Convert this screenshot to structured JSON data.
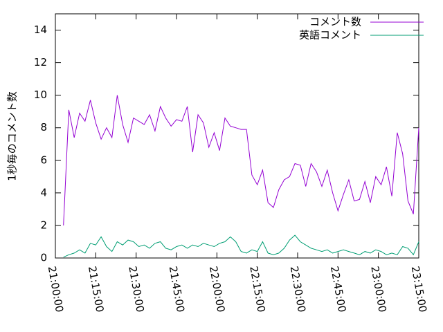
{
  "chart_data": {
    "type": "line",
    "ylabel": "1秒毎のコメント数",
    "x": [
      "21:03:00",
      "21:05:00",
      "21:07:00",
      "21:09:00",
      "21:11:00",
      "21:13:00",
      "21:15:00",
      "21:17:00",
      "21:19:00",
      "21:21:00",
      "21:23:00",
      "21:25:00",
      "21:27:00",
      "21:29:00",
      "21:31:00",
      "21:33:00",
      "21:35:00",
      "21:37:00",
      "21:39:00",
      "21:41:00",
      "21:43:00",
      "21:45:00",
      "21:47:00",
      "21:49:00",
      "21:51:00",
      "21:53:00",
      "21:55:00",
      "21:57:00",
      "21:59:00",
      "22:01:00",
      "22:03:00",
      "22:05:00",
      "22:07:00",
      "22:09:00",
      "22:11:00",
      "22:13:00",
      "22:15:00",
      "22:17:00",
      "22:19:00",
      "22:21:00",
      "22:23:00",
      "22:25:00",
      "22:27:00",
      "22:29:00",
      "22:31:00",
      "22:33:00",
      "22:35:00",
      "22:37:00",
      "22:39:00",
      "22:41:00",
      "22:43:00",
      "22:45:00",
      "22:47:00",
      "22:49:00",
      "22:51:00",
      "22:53:00",
      "22:55:00",
      "22:57:00",
      "22:59:00",
      "23:01:00",
      "23:03:00",
      "23:05:00",
      "23:07:00",
      "23:09:00",
      "23:11:00",
      "23:13:00",
      "23:15:00"
    ],
    "series": [
      {
        "name": "コメント数",
        "color": "#9400d3",
        "values": [
          2.0,
          9.1,
          7.4,
          8.9,
          8.4,
          9.7,
          8.3,
          7.3,
          8.0,
          7.4,
          10.0,
          8.2,
          7.1,
          8.6,
          8.4,
          8.2,
          8.8,
          7.8,
          9.3,
          8.6,
          8.1,
          8.5,
          8.4,
          9.3,
          6.5,
          8.8,
          8.3,
          6.8,
          7.7,
          6.6,
          8.6,
          8.1,
          8.0,
          7.9,
          7.9,
          5.1,
          4.5,
          5.4,
          3.4,
          3.1,
          4.2,
          4.8,
          5.0,
          5.8,
          5.7,
          4.4,
          5.8,
          5.3,
          4.4,
          5.4,
          4.0,
          2.9,
          3.9,
          4.8,
          3.5,
          3.6,
          4.7,
          3.4,
          5.0,
          4.5,
          5.6,
          3.8,
          7.7,
          6.4,
          3.5,
          2.7,
          8.0
        ]
      },
      {
        "name": "英語コメント",
        "color": "#009e73",
        "values": [
          0.05,
          0.2,
          0.3,
          0.5,
          0.3,
          0.9,
          0.8,
          1.3,
          0.7,
          0.4,
          1.0,
          0.8,
          1.1,
          1.0,
          0.7,
          0.8,
          0.6,
          0.9,
          1.0,
          0.6,
          0.5,
          0.7,
          0.8,
          0.6,
          0.8,
          0.7,
          0.9,
          0.8,
          0.7,
          0.9,
          1.0,
          1.3,
          1.0,
          0.4,
          0.3,
          0.5,
          0.4,
          1.0,
          0.3,
          0.2,
          0.3,
          0.6,
          1.1,
          1.4,
          1.0,
          0.8,
          0.6,
          0.5,
          0.4,
          0.5,
          0.3,
          0.4,
          0.5,
          0.4,
          0.3,
          0.2,
          0.4,
          0.3,
          0.5,
          0.4,
          0.2,
          0.3,
          0.2,
          0.7,
          0.6,
          0.2,
          1.0
        ]
      }
    ],
    "xlim": [
      "21:00:00",
      "23:15:00"
    ],
    "xticks": [
      "21:00:00",
      "21:15:00",
      "21:30:00",
      "21:45:00",
      "22:00:00",
      "22:15:00",
      "22:30:00",
      "22:45:00",
      "23:00:00",
      "23:15:00"
    ],
    "ylim": [
      0,
      15
    ],
    "yticks": [
      0,
      2,
      4,
      6,
      8,
      10,
      12,
      14
    ],
    "legend": "upper-right"
  }
}
